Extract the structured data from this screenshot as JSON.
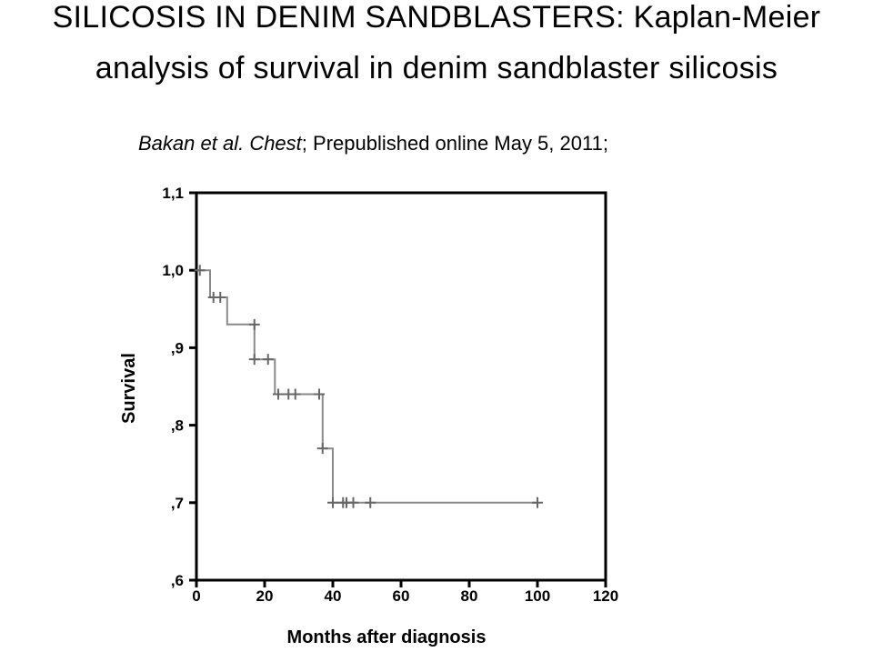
{
  "slide": {
    "title_line1": "SILICOSIS IN DENIM SANDBLASTERS: Kaplan-Meier",
    "title_line2": "analysis of survival in denim sandblaster silicosis",
    "citation_author": "Bakan et al.",
    "citation_journal": "Chest",
    "citation_rest": "; Prepublished online May 5, 2011;"
  },
  "chart_data": {
    "type": "line",
    "subtype": "kaplan-meier-step",
    "xlabel": "Months after diagnosis",
    "ylabel": "Survival",
    "xlim": [
      0,
      120
    ],
    "ylim": [
      0.6,
      1.1
    ],
    "x_ticks": [
      0,
      20,
      40,
      60,
      80,
      100,
      120
    ],
    "x_tick_labels": [
      "0",
      "20",
      "40",
      "60",
      "80",
      "100",
      "120"
    ],
    "y_ticks": [
      0.6,
      0.7,
      0.8,
      0.9,
      1.0,
      1.1
    ],
    "y_tick_labels": [
      ",6",
      ",7",
      ",8",
      ",9",
      "1,0",
      "1,1"
    ],
    "grid": false,
    "line_color": "#8a8a8a",
    "step_points": [
      {
        "x": 0,
        "y": 1.0
      },
      {
        "x": 4,
        "y": 1.0
      },
      {
        "x": 4,
        "y": 0.965
      },
      {
        "x": 9,
        "y": 0.965
      },
      {
        "x": 9,
        "y": 0.93
      },
      {
        "x": 17,
        "y": 0.93
      },
      {
        "x": 17,
        "y": 0.885
      },
      {
        "x": 23,
        "y": 0.885
      },
      {
        "x": 23,
        "y": 0.84
      },
      {
        "x": 37,
        "y": 0.84
      },
      {
        "x": 37,
        "y": 0.77
      },
      {
        "x": 40,
        "y": 0.77
      },
      {
        "x": 40,
        "y": 0.7
      },
      {
        "x": 100,
        "y": 0.7
      }
    ],
    "censored": [
      {
        "x": 1,
        "y": 1.0
      },
      {
        "x": 5,
        "y": 0.965
      },
      {
        "x": 7,
        "y": 0.965
      },
      {
        "x": 17,
        "y": 0.93
      },
      {
        "x": 17,
        "y": 0.885
      },
      {
        "x": 21,
        "y": 0.885
      },
      {
        "x": 24,
        "y": 0.84
      },
      {
        "x": 27,
        "y": 0.84
      },
      {
        "x": 29,
        "y": 0.84
      },
      {
        "x": 36,
        "y": 0.84
      },
      {
        "x": 37,
        "y": 0.77
      },
      {
        "x": 40,
        "y": 0.7
      },
      {
        "x": 43,
        "y": 0.7
      },
      {
        "x": 44,
        "y": 0.7
      },
      {
        "x": 46,
        "y": 0.7
      },
      {
        "x": 51,
        "y": 0.7
      },
      {
        "x": 100,
        "y": 0.7
      }
    ]
  }
}
